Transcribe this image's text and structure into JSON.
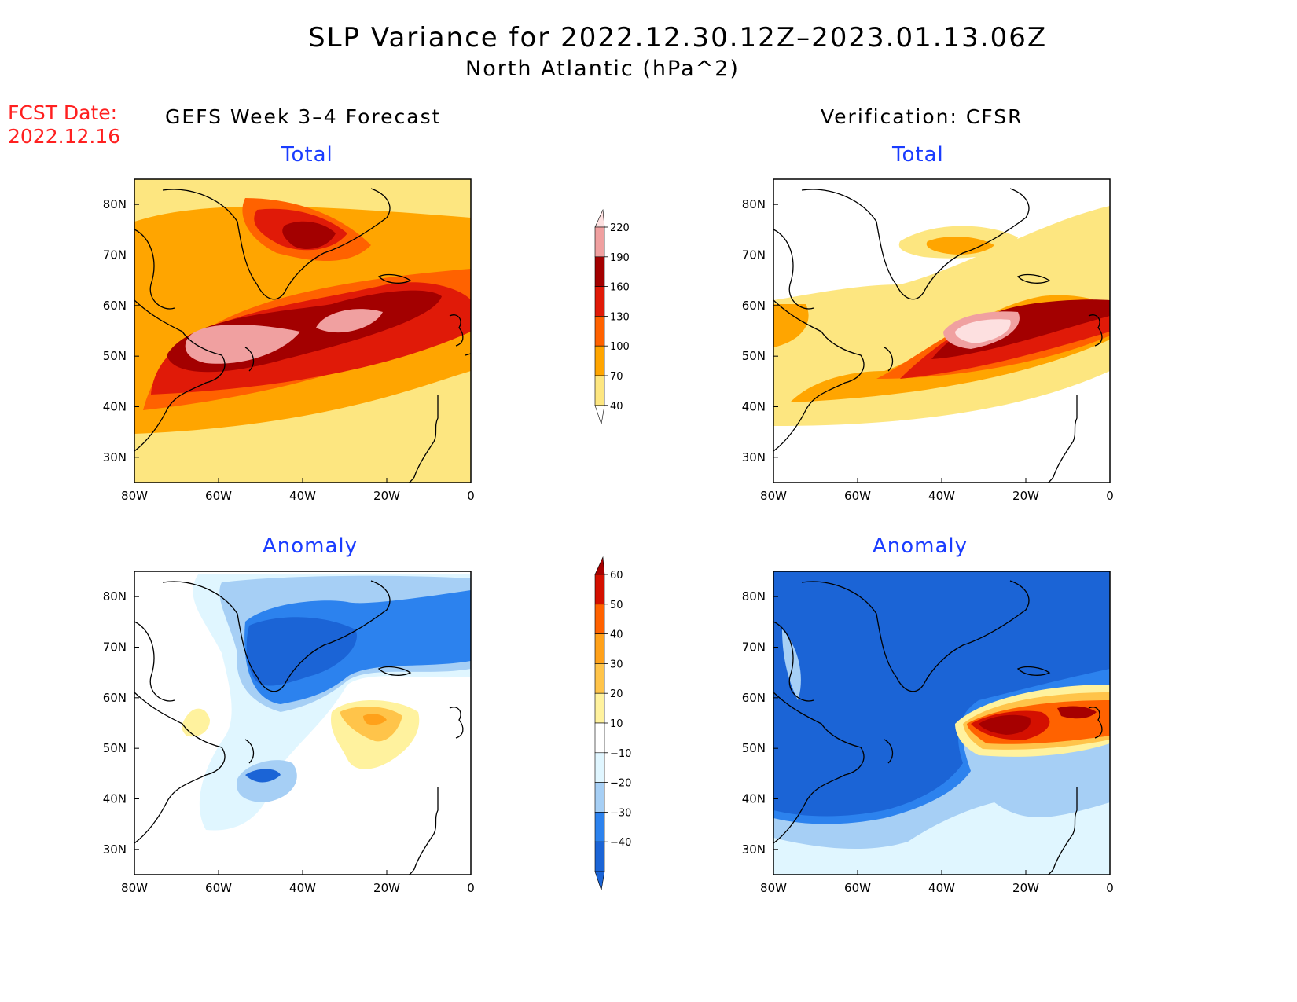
{
  "title": "SLP Variance for 2022.12.30.12Z–2023.01.13.06Z",
  "subtitle": "North Atlantic (hPa^2)",
  "fcst_date_label": "FCST Date:",
  "fcst_date_value": "2022.12.16",
  "left_column_title": "GEFS Week 3–4 Forecast",
  "right_column_title": "Verification: CFSR",
  "panels": {
    "gefs_total": {
      "label": "Total"
    },
    "gefs_anomaly": {
      "label": "Anomaly"
    },
    "cfsr_total": {
      "label": "Total"
    },
    "cfsr_anomaly": {
      "label": "Anomaly"
    }
  },
  "axes": {
    "lon_ticks": [
      "80W",
      "60W",
      "40W",
      "20W",
      "0"
    ],
    "lat_ticks": [
      "80N",
      "70N",
      "60N",
      "50N",
      "40N",
      "30N"
    ],
    "lon_range": [
      -80,
      0
    ],
    "lat_range": [
      25,
      85
    ]
  },
  "colorbars": {
    "total": {
      "labels": [
        "220",
        "190",
        "160",
        "130",
        "100",
        "70",
        "40"
      ],
      "levels": [
        40,
        70,
        100,
        130,
        160,
        190,
        220
      ],
      "colors": [
        "#fde680",
        "#ffa500",
        "#ff6200",
        "#e01a08",
        "#a30000",
        "#f0a0a0",
        "#fde0e0"
      ]
    },
    "anomaly": {
      "labels": [
        "60",
        "50",
        "40",
        "30",
        "20",
        "10",
        "−10",
        "−20",
        "−30",
        "−40"
      ],
      "levels": [
        -40,
        -30,
        -20,
        -10,
        10,
        20,
        30,
        40,
        50,
        60
      ],
      "colors": [
        "#1b64d6",
        "#2c82ee",
        "#a6cff5",
        "#e0f6ff",
        "#ffffff",
        "#fff29e",
        "#ffc44a",
        "#ffa11a",
        "#ff6200",
        "#d41000",
        "#a60000"
      ]
    }
  },
  "legend_colors": {
    "panel_title": "#1a3cff",
    "fcst_date": "#ff2020"
  }
}
